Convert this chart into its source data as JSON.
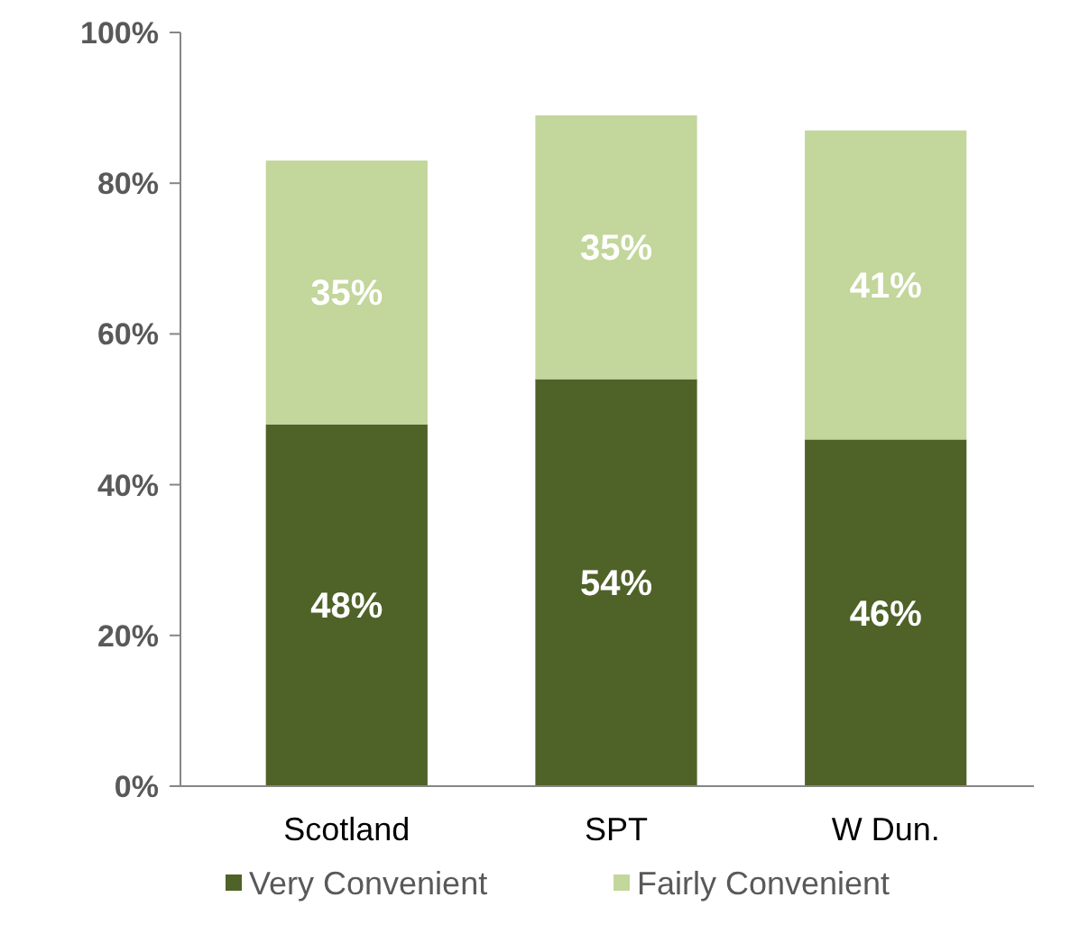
{
  "chart_data": {
    "type": "bar",
    "stacked": true,
    "categories": [
      "Scotland",
      "SPT",
      "W Dun."
    ],
    "series": [
      {
        "name": "Very Convenient",
        "color": "#4f6228",
        "values": [
          48,
          54,
          46
        ],
        "value_labels": [
          "48%",
          "54%",
          "46%"
        ]
      },
      {
        "name": "Fairly Convenient",
        "color": "#c3d69b",
        "values": [
          35,
          35,
          41
        ],
        "value_labels": [
          "35%",
          "35%",
          "41%"
        ]
      }
    ],
    "ylim": [
      0,
      100
    ],
    "yticks": [
      {
        "value": 0,
        "label": "0%"
      },
      {
        "value": 20,
        "label": "20%"
      },
      {
        "value": 40,
        "label": "40%"
      },
      {
        "value": 60,
        "label": "60%"
      },
      {
        "value": 80,
        "label": "80%"
      },
      {
        "value": 100,
        "label": "100%"
      }
    ],
    "grid": false,
    "legend": "bottom"
  }
}
